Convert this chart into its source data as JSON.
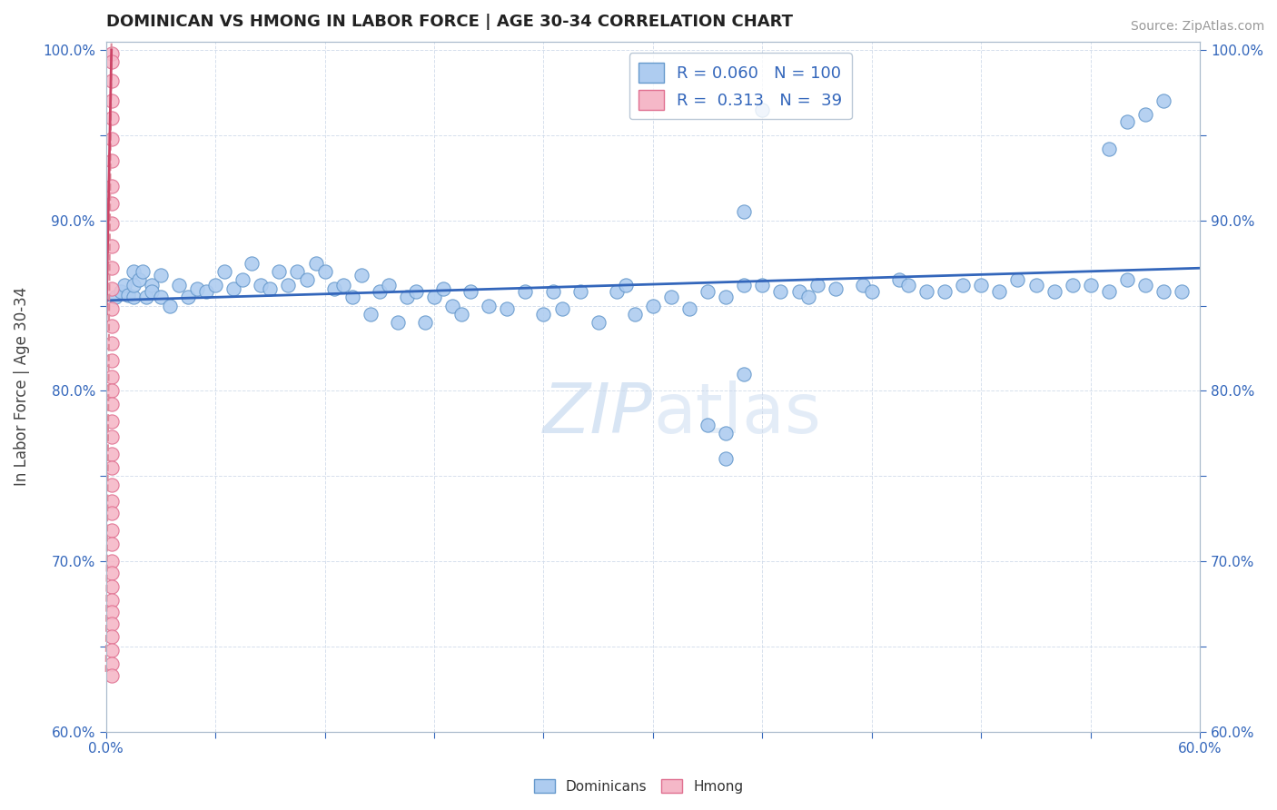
{
  "title": "DOMINICAN VS HMONG IN LABOR FORCE | AGE 30-34 CORRELATION CHART",
  "source_text": "Source: ZipAtlas.com",
  "ylabel": "In Labor Force | Age 30-34",
  "xlim": [
    0.0,
    0.6
  ],
  "ylim": [
    0.6,
    1.005
  ],
  "xticks": [
    0.0,
    0.06,
    0.12,
    0.18,
    0.24,
    0.3,
    0.36,
    0.42,
    0.48,
    0.54,
    0.6
  ],
  "yticks": [
    0.6,
    0.65,
    0.7,
    0.75,
    0.8,
    0.85,
    0.9,
    0.95,
    1.0
  ],
  "dominican_color": "#aeccf0",
  "dominican_edge": "#6699cc",
  "hmong_color": "#f5b8c8",
  "hmong_edge": "#e07090",
  "dominican_line_color": "#3366bb",
  "hmong_line_color": "#cc4466",
  "hmong_line_dash": "#dd8899",
  "R_dominican": 0.06,
  "N_dominican": 100,
  "R_hmong": 0.313,
  "N_hmong": 39,
  "watermark": "ZIPatlas",
  "legend_dominicans": "Dominicans",
  "legend_hmong": "Hmong",
  "dom_x": [
    0.005,
    0.008,
    0.01,
    0.012,
    0.015,
    0.015,
    0.015,
    0.018,
    0.02,
    0.022,
    0.025,
    0.025,
    0.03,
    0.03,
    0.035,
    0.04,
    0.045,
    0.05,
    0.055,
    0.06,
    0.065,
    0.07,
    0.075,
    0.08,
    0.085,
    0.09,
    0.095,
    0.1,
    0.105,
    0.11,
    0.115,
    0.12,
    0.125,
    0.13,
    0.135,
    0.14,
    0.145,
    0.15,
    0.155,
    0.16,
    0.165,
    0.17,
    0.175,
    0.18,
    0.185,
    0.19,
    0.195,
    0.2,
    0.21,
    0.22,
    0.23,
    0.24,
    0.245,
    0.25,
    0.26,
    0.27,
    0.28,
    0.285,
    0.29,
    0.3,
    0.31,
    0.32,
    0.33,
    0.34,
    0.35,
    0.36,
    0.37,
    0.38,
    0.385,
    0.39,
    0.4,
    0.415,
    0.42,
    0.435,
    0.44,
    0.45,
    0.46,
    0.47,
    0.48,
    0.49,
    0.5,
    0.51,
    0.52,
    0.53,
    0.54,
    0.55,
    0.56,
    0.57,
    0.58,
    0.59,
    0.35,
    0.36,
    0.55,
    0.56,
    0.57,
    0.58,
    0.33,
    0.34,
    0.34,
    0.35
  ],
  "dom_y": [
    0.855,
    0.858,
    0.862,
    0.856,
    0.87,
    0.855,
    0.862,
    0.865,
    0.87,
    0.855,
    0.862,
    0.858,
    0.855,
    0.868,
    0.85,
    0.862,
    0.855,
    0.86,
    0.858,
    0.862,
    0.87,
    0.86,
    0.865,
    0.875,
    0.862,
    0.86,
    0.87,
    0.862,
    0.87,
    0.865,
    0.875,
    0.87,
    0.86,
    0.862,
    0.855,
    0.868,
    0.845,
    0.858,
    0.862,
    0.84,
    0.855,
    0.858,
    0.84,
    0.855,
    0.86,
    0.85,
    0.845,
    0.858,
    0.85,
    0.848,
    0.858,
    0.845,
    0.858,
    0.848,
    0.858,
    0.84,
    0.858,
    0.862,
    0.845,
    0.85,
    0.855,
    0.848,
    0.858,
    0.855,
    0.862,
    0.862,
    0.858,
    0.858,
    0.855,
    0.862,
    0.86,
    0.862,
    0.858,
    0.865,
    0.862,
    0.858,
    0.858,
    0.862,
    0.862,
    0.858,
    0.865,
    0.862,
    0.858,
    0.862,
    0.862,
    0.858,
    0.865,
    0.862,
    0.858,
    0.858,
    0.905,
    0.965,
    0.942,
    0.958,
    0.962,
    0.97,
    0.78,
    0.775,
    0.76,
    0.81
  ],
  "hmong_x": [
    0.003,
    0.003,
    0.003,
    0.003,
    0.003,
    0.003,
    0.003,
    0.003,
    0.003,
    0.003,
    0.003,
    0.003,
    0.003,
    0.003,
    0.003,
    0.003,
    0.003,
    0.003,
    0.003,
    0.003,
    0.003,
    0.003,
    0.003,
    0.003,
    0.003,
    0.003,
    0.003,
    0.003,
    0.003,
    0.003,
    0.003,
    0.003,
    0.003,
    0.003,
    0.003,
    0.003,
    0.003,
    0.003,
    0.003
  ],
  "hmong_y": [
    0.998,
    0.993,
    0.982,
    0.97,
    0.96,
    0.948,
    0.935,
    0.92,
    0.91,
    0.898,
    0.885,
    0.872,
    0.86,
    0.848,
    0.838,
    0.828,
    0.818,
    0.808,
    0.8,
    0.792,
    0.782,
    0.773,
    0.763,
    0.755,
    0.745,
    0.735,
    0.728,
    0.718,
    0.71,
    0.7,
    0.693,
    0.685,
    0.677,
    0.67,
    0.663,
    0.656,
    0.648,
    0.64,
    0.633
  ],
  "hmong_trend_x0": 0.0,
  "hmong_trend_y0": 0.635,
  "hmong_trend_x1": 0.003,
  "hmong_trend_y1": 1.005,
  "dom_trend_x0": 0.0,
  "dom_trend_y0": 0.853,
  "dom_trend_x1": 0.6,
  "dom_trend_y1": 0.872
}
